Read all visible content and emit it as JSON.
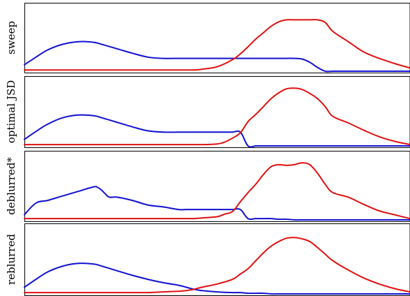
{
  "colors": {
    "blue": "#1010d0",
    "red": "#e01010",
    "frame": "#000000"
  },
  "chart_data": [
    {
      "type": "line",
      "panel_label": "sweep",
      "x": [
        0,
        0.03,
        0.06,
        0.1,
        0.14,
        0.18,
        0.2,
        0.24,
        0.28,
        0.32,
        0.36,
        0.4,
        0.42,
        0.44,
        0.46,
        0.5,
        0.54,
        0.56,
        0.58,
        0.6,
        0.62,
        0.64,
        0.66,
        0.68,
        0.7,
        0.72,
        0.74,
        0.76,
        0.78,
        0.8,
        0.84,
        0.88,
        0.92,
        0.96,
        1.0
      ],
      "ylim": [
        0,
        1
      ],
      "series": [
        {
          "color": "blue",
          "values": [
            0.1,
            0.22,
            0.33,
            0.42,
            0.46,
            0.45,
            0.42,
            0.35,
            0.28,
            0.22,
            0.2,
            0.2,
            0.2,
            0.2,
            0.2,
            0.2,
            0.2,
            0.2,
            0.2,
            0.2,
            0.2,
            0.2,
            0.2,
            0.2,
            0.2,
            0.19,
            0.14,
            0.06,
            0.0,
            0.0,
            0.0,
            0.0,
            0.0,
            0.0,
            0.0
          ]
        },
        {
          "color": "red",
          "values": [
            0.02,
            0.02,
            0.02,
            0.02,
            0.02,
            0.02,
            0.02,
            0.02,
            0.02,
            0.02,
            0.02,
            0.02,
            0.02,
            0.02,
            0.03,
            0.07,
            0.18,
            0.27,
            0.38,
            0.5,
            0.6,
            0.7,
            0.77,
            0.8,
            0.8,
            0.8,
            0.8,
            0.8,
            0.76,
            0.62,
            0.46,
            0.3,
            0.2,
            0.12,
            0.05
          ]
        }
      ]
    },
    {
      "type": "line",
      "panel_label": "optimal JSD",
      "x": [
        0,
        0.03,
        0.06,
        0.1,
        0.14,
        0.18,
        0.2,
        0.24,
        0.28,
        0.32,
        0.36,
        0.4,
        0.42,
        0.44,
        0.46,
        0.5,
        0.52,
        0.54,
        0.56,
        0.58,
        0.6,
        0.62,
        0.64,
        0.66,
        0.68,
        0.7,
        0.72,
        0.74,
        0.76,
        0.78,
        0.8,
        0.84,
        0.88,
        0.92,
        0.96,
        1.0
      ],
      "ylim": [
        0,
        1
      ],
      "series": [
        {
          "color": "blue",
          "values": [
            0.1,
            0.22,
            0.33,
            0.43,
            0.47,
            0.46,
            0.43,
            0.36,
            0.29,
            0.23,
            0.21,
            0.21,
            0.21,
            0.21,
            0.21,
            0.21,
            0.21,
            0.21,
            0.21,
            0.0,
            0.0,
            0.0,
            0.0,
            0.0,
            0.0,
            0.0,
            0.0,
            0.0,
            0.0,
            0.0,
            0.0,
            0.0,
            0.0,
            0.0,
            0.0,
            0.0
          ]
        },
        {
          "color": "red",
          "values": [
            0.02,
            0.02,
            0.02,
            0.02,
            0.02,
            0.02,
            0.02,
            0.02,
            0.02,
            0.02,
            0.02,
            0.02,
            0.02,
            0.02,
            0.02,
            0.03,
            0.06,
            0.12,
            0.2,
            0.37,
            0.48,
            0.6,
            0.72,
            0.81,
            0.87,
            0.88,
            0.86,
            0.8,
            0.72,
            0.6,
            0.45,
            0.35,
            0.24,
            0.14,
            0.07,
            0.02
          ]
        }
      ]
    },
    {
      "type": "line",
      "panel_label": "deblurred*",
      "x": [
        0,
        0.03,
        0.06,
        0.1,
        0.14,
        0.18,
        0.19,
        0.2,
        0.21,
        0.22,
        0.24,
        0.28,
        0.32,
        0.36,
        0.4,
        0.42,
        0.44,
        0.46,
        0.5,
        0.52,
        0.54,
        0.56,
        0.58,
        0.6,
        0.62,
        0.64,
        0.66,
        0.68,
        0.7,
        0.72,
        0.74,
        0.76,
        0.78,
        0.8,
        0.84,
        0.88,
        0.92,
        0.96,
        1.0
      ],
      "ylim": [
        0,
        1
      ],
      "series": [
        {
          "color": "blue",
          "values": [
            0.08,
            0.26,
            0.3,
            0.37,
            0.44,
            0.51,
            0.5,
            0.46,
            0.4,
            0.35,
            0.35,
            0.3,
            0.23,
            0.2,
            0.16,
            0.16,
            0.16,
            0.16,
            0.16,
            0.16,
            0.16,
            0.16,
            0.02,
            0.02,
            0.02,
            0.02,
            0.01,
            0.01,
            0.0,
            0.0,
            0.0,
            0.0,
            0.0,
            0.0,
            0.0,
            0.0,
            0.0,
            0.0,
            0.0
          ]
        },
        {
          "color": "red",
          "values": [
            0.02,
            0.02,
            0.02,
            0.02,
            0.02,
            0.02,
            0.02,
            0.02,
            0.02,
            0.02,
            0.02,
            0.02,
            0.02,
            0.02,
            0.02,
            0.02,
            0.02,
            0.03,
            0.05,
            0.09,
            0.13,
            0.28,
            0.42,
            0.55,
            0.7,
            0.82,
            0.85,
            0.84,
            0.85,
            0.88,
            0.85,
            0.72,
            0.55,
            0.42,
            0.35,
            0.24,
            0.14,
            0.08,
            0.02
          ]
        }
      ]
    },
    {
      "type": "line",
      "panel_label": "reblurred",
      "x": [
        0,
        0.03,
        0.06,
        0.1,
        0.14,
        0.18,
        0.2,
        0.24,
        0.28,
        0.32,
        0.36,
        0.4,
        0.42,
        0.44,
        0.46,
        0.5,
        0.54,
        0.56,
        0.58,
        0.6,
        0.62,
        0.64,
        0.66,
        0.68,
        0.7,
        0.72,
        0.74,
        0.76,
        0.78,
        0.8,
        0.84,
        0.88,
        0.92,
        0.96,
        1.0
      ],
      "ylim": [
        0,
        1
      ],
      "series": [
        {
          "color": "blue",
          "values": [
            0.1,
            0.22,
            0.33,
            0.42,
            0.46,
            0.45,
            0.42,
            0.35,
            0.28,
            0.22,
            0.17,
            0.13,
            0.1,
            0.07,
            0.05,
            0.03,
            0.02,
            0.02,
            0.01,
            0.01,
            0.01,
            0.0,
            0.0,
            0.0,
            0.0,
            0.0,
            0.0,
            0.0,
            0.0,
            0.0,
            0.0,
            0.0,
            0.0,
            0.0,
            0.0
          ]
        },
        {
          "color": "red",
          "values": [
            0.02,
            0.02,
            0.02,
            0.02,
            0.02,
            0.02,
            0.02,
            0.02,
            0.02,
            0.02,
            0.03,
            0.04,
            0.05,
            0.07,
            0.1,
            0.15,
            0.22,
            0.3,
            0.38,
            0.5,
            0.62,
            0.72,
            0.79,
            0.84,
            0.85,
            0.83,
            0.79,
            0.7,
            0.6,
            0.5,
            0.36,
            0.24,
            0.15,
            0.08,
            0.03
          ]
        }
      ]
    }
  ]
}
